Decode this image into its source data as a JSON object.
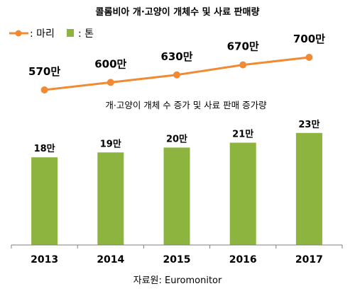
{
  "title": "콜롬비아 개·고양이 개체수 및 사료 판매량",
  "legend": {
    "line_label": ": 마리",
    "bar_label": ": 톤"
  },
  "subtitle": "개·고양이 개체 수 증가 및 사료 판매 증가량",
  "source": "자료원: Euromonitor",
  "colors": {
    "line": "#f08a33",
    "bar": "#8db43f",
    "axis": "#7f7f7f"
  },
  "chart_data": {
    "type": "bar",
    "categories": [
      "2013",
      "2014",
      "2015",
      "2016",
      "2017"
    ],
    "series": [
      {
        "type": "line",
        "unit": "마리",
        "values": [
          570,
          600,
          630,
          670,
          700
        ],
        "labels": [
          "570만",
          "600만",
          "630만",
          "670만",
          "700만"
        ]
      },
      {
        "type": "bar",
        "unit": "톤",
        "values": [
          18,
          19,
          20,
          21,
          23
        ],
        "labels": [
          "18만",
          "19만",
          "20만",
          "21만",
          "23만"
        ]
      }
    ]
  }
}
